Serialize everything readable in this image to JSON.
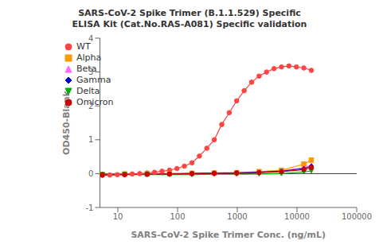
{
  "chart_data": {
    "type": "line",
    "title": "SARS-CoV-2 Spike Trimer (B.1.1.529) Specific\nELISA Kit (Cat.No.RAS-A081) Specific validation",
    "x_label": "SARS-CoV-2 Spike Trimer Conc. (ng/mL)",
    "y_label": "OD450-Blank",
    "log": "x",
    "xlim": [
      5,
      100000
    ],
    "xticks": [
      10,
      100,
      1000,
      10000,
      100000
    ],
    "ylim": [
      -1,
      4
    ],
    "yticks": [
      -1,
      0,
      1,
      2,
      3,
      4
    ],
    "grid": false,
    "legend": "upper left",
    "series": [
      {
        "name": "WT",
        "color": "#FF4444",
        "marker": "circle",
        "line_style": "solid",
        "x": [
          5.49,
          7.32,
          9.77,
          13.0,
          17.4,
          23.2,
          30.9,
          41.2,
          54.9,
          73.3,
          97.7,
          130,
          174,
          232,
          309,
          412,
          549,
          733,
          977,
          1303,
          1738,
          2317,
          3090,
          4121,
          5495,
          7328,
          9771,
          13031,
          17378
        ],
        "values": [
          -0.05,
          -0.04,
          -0.03,
          -0.02,
          -0.01,
          0.0,
          0.02,
          0.04,
          0.07,
          0.1,
          0.15,
          0.22,
          0.32,
          0.52,
          0.75,
          1.0,
          1.45,
          1.8,
          2.15,
          2.45,
          2.7,
          2.88,
          3.0,
          3.1,
          3.15,
          3.18,
          3.15,
          3.12,
          3.05
        ]
      },
      {
        "name": "Alpha",
        "color": "#FF9900",
        "marker": "square",
        "line_style": "solid",
        "x": [
          5.49,
          13.0,
          30.9,
          73.3,
          174,
          412,
          977,
          2317,
          5495,
          13031,
          17378
        ],
        "values": [
          -0.02,
          -0.01,
          -0.01,
          0.0,
          0.01,
          0.02,
          0.03,
          0.06,
          0.1,
          0.28,
          0.4
        ]
      },
      {
        "name": "Beta",
        "color": "#FF66FF",
        "marker": "triangle-up",
        "line_style": "solid",
        "x": [
          5.49,
          13.0,
          30.9,
          73.3,
          174,
          412,
          977,
          2317,
          5495,
          13031,
          17378
        ],
        "values": [
          -0.02,
          -0.01,
          -0.01,
          0.0,
          0.01,
          0.02,
          0.03,
          0.05,
          0.08,
          0.18,
          0.25
        ]
      },
      {
        "name": "Gamma",
        "color": "#0000CC",
        "marker": "diamond",
        "line_style": "solid",
        "x": [
          5.49,
          13.0,
          30.9,
          73.3,
          174,
          412,
          977,
          2317,
          5495,
          13031,
          17378
        ],
        "values": [
          -0.02,
          -0.02,
          -0.02,
          -0.01,
          0.0,
          0.01,
          0.02,
          0.04,
          0.07,
          0.15,
          0.22
        ]
      },
      {
        "name": "Delta",
        "color": "#00AA00",
        "marker": "triangle-down",
        "line_style": "solid",
        "x": [
          5.49,
          13.0,
          30.9,
          73.3,
          174,
          412,
          977,
          2317,
          5495,
          13031,
          17378
        ],
        "values": [
          -0.03,
          -0.03,
          -0.03,
          -0.03,
          -0.03,
          -0.02,
          -0.02,
          -0.01,
          0.0,
          0.05,
          0.08
        ]
      },
      {
        "name": "Omicron",
        "color": "#CC0000",
        "marker": "circle",
        "line_style": "solid",
        "x": [
          5.49,
          13.0,
          30.9,
          73.3,
          174,
          412,
          977,
          2317,
          5495,
          13031,
          17378
        ],
        "values": [
          -0.04,
          -0.03,
          -0.02,
          -0.01,
          0.0,
          0.01,
          0.02,
          0.03,
          0.06,
          0.12,
          0.18
        ]
      }
    ]
  }
}
